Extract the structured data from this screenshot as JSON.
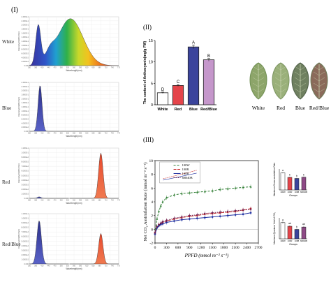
{
  "panels": {
    "panel1": "(I)",
    "panel2": "(II)",
    "panel3": "(III)"
  },
  "colors": {
    "white_bar": "#ffffff",
    "red_bar": "#e4444a",
    "blue_bar": "#3b449c",
    "redblue_bar": "#c597cb",
    "blue_peak": "#3a3f9a",
    "red_peak": "#e03a2a"
  },
  "spectra": [
    {
      "label": "White",
      "xlabel": "Wavelength(nm)",
      "ylabel": "Intensity(mW/m²/nm)",
      "yticks": [
        "2.400E-1",
        "2.200E-1",
        "2.000E-1",
        "1.800E-1",
        "1.600E-1",
        "1.400E-1",
        "1.200E-1",
        "1.000E-1",
        "8.000E-2",
        "6.000E-2",
        "4.000E-2",
        "2.000E-2",
        "0.000"
      ]
    },
    {
      "label": "Blue",
      "xlabel": "Wavelength(nm)",
      "ylabel": "Intensity(mW/m²/nm)",
      "yticks": [
        "2.400E-1",
        "2.200E-1",
        "2.000E-1",
        "1.800E-1",
        "1.600E-1",
        "1.400E-1",
        "1.200E-1",
        "1.000E-1",
        "8.000E-2",
        "6.000E-2",
        "4.000E-2",
        "2.000E-2",
        "0.000"
      ]
    },
    {
      "label": "Red",
      "xlabel": "Wavelength(nm)",
      "ylabel": "Intensity(mW/m²/nm)",
      "yticks": [
        "1.100E-1",
        "1.000E-1",
        "9.000E-2",
        "8.000E-2",
        "7.000E-2",
        "6.000E-2",
        "5.000E-2",
        "4.000E-2",
        "3.000E-2",
        "2.000E-2",
        "1.000E-2",
        "0.000"
      ]
    },
    {
      "label": "Red/Blue",
      "xlabel": "Wavelength(nm)",
      "ylabel": "Intensity(mW/m²/nm)",
      "yticks": [
        "1.100E-1",
        "1.000E-1",
        "9.000E-2",
        "8.000E-2",
        "7.000E-2",
        "6.000E-2",
        "5.000E-2",
        "4.000E-2",
        "3.000E-2",
        "2.000E-2",
        "1.000E-2",
        "0.000"
      ]
    }
  ],
  "leaves": [
    "White",
    "Red",
    "Blue",
    "Red/Blue"
  ],
  "chart_data": [
    {
      "type": "bar",
      "title": "",
      "ylabel": "The content of Anthocyanin(mg/g FW)",
      "xlabel": "",
      "categories": [
        "White",
        "Red",
        "Blue",
        "Red/Blue"
      ],
      "values": [
        2.8,
        4.5,
        13.5,
        10.5
      ],
      "errors": [
        0.15,
        0.2,
        0.4,
        0.3
      ],
      "letters": [
        "D",
        "C",
        "A",
        "B"
      ],
      "ylim": [
        0,
        15
      ],
      "yticks": [
        0,
        5,
        10,
        15
      ]
    },
    {
      "type": "line",
      "xlabel": "PPFD (mmol m⁻² s⁻¹)",
      "ylabel": "Net CO₂ Assimilation Rate (mmol m⁻² s⁻¹)",
      "xlim": [
        0,
        2700
      ],
      "xticks": [
        0,
        300,
        600,
        900,
        1200,
        1500,
        1800,
        2100,
        2400,
        2700
      ],
      "ylim": [
        -2,
        10
      ],
      "yticks": [
        -2,
        0,
        2,
        4,
        6,
        8,
        10
      ],
      "legend": [
        "100W",
        "100R",
        "100B",
        "60R40B"
      ],
      "legend_position": "top-left",
      "x": [
        0,
        50,
        100,
        150,
        200,
        300,
        500,
        700,
        900,
        1100,
        1300,
        1500,
        1700,
        1900,
        2100,
        2300,
        2500
      ],
      "series": [
        {
          "name": "100W",
          "values": [
            -0.6,
            1.5,
            2.6,
            3.4,
            4.0,
            4.6,
            5.0,
            5.2,
            5.3,
            5.4,
            5.5,
            5.6,
            5.8,
            5.9,
            6.0,
            6.1,
            6.2
          ]
        },
        {
          "name": "100R",
          "values": [
            -0.5,
            0.3,
            0.6,
            0.8,
            1.0,
            1.2,
            1.5,
            1.7,
            1.9,
            2.0,
            2.2,
            2.3,
            2.4,
            2.5,
            2.6,
            2.8,
            3.0
          ]
        },
        {
          "name": "100B",
          "values": [
            -0.7,
            0.2,
            0.5,
            0.7,
            0.8,
            1.0,
            1.2,
            1.4,
            1.5,
            1.6,
            1.7,
            1.8,
            1.9,
            2.0,
            2.1,
            2.2,
            2.4
          ]
        },
        {
          "name": "60R40B",
          "values": [
            -0.5,
            0.4,
            0.7,
            0.9,
            1.1,
            1.3,
            1.6,
            1.8,
            2.0,
            2.1,
            2.3,
            2.4,
            2.5,
            2.6,
            2.7,
            2.8,
            2.9
          ]
        }
      ]
    },
    {
      "type": "bar",
      "ylabel": "Maximum Gross assimilation Rate",
      "xlabel": "Groups",
      "categories": [
        "100W",
        "100R",
        "100B",
        "60R40B"
      ],
      "values": [
        8.2,
        6.0,
        5.5,
        6.1
      ],
      "errors": [
        0.3,
        0.3,
        0.3,
        0.3
      ],
      "letters": [
        "a",
        "b",
        "b",
        "b"
      ],
      "ylim": [
        0,
        10
      ]
    },
    {
      "type": "bar",
      "ylabel": "Maximum Quantum Yield of CO₂",
      "xlabel": "Groups",
      "categories": [
        "100W",
        "100R",
        "100B",
        "60R40B"
      ],
      "values": [
        0.062,
        0.048,
        0.036,
        0.045
      ],
      "errors": [
        0.004,
        0.004,
        0.003,
        0.004
      ],
      "letters": [
        "a",
        "ab",
        "b",
        "ab"
      ],
      "ylim": [
        0,
        0.08
      ]
    }
  ]
}
